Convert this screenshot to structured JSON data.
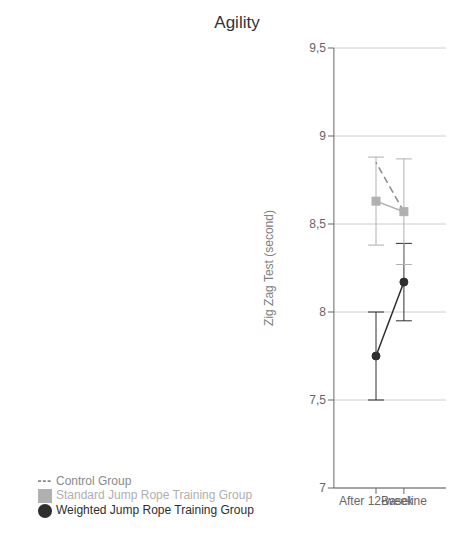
{
  "chart_data": {
    "type": "line",
    "title": "Agility",
    "ylabel": "Zig Zag Test (second)",
    "categories": [
      "Baseline",
      "After 12-week"
    ],
    "ylim": [
      7,
      9.5
    ],
    "yticks": [
      7,
      {
        "value": 7.5,
        "label": "7,5"
      },
      8,
      {
        "value": 8.5,
        "label": "8,5"
      },
      9,
      {
        "value": 9.5,
        "label": "9,5"
      }
    ],
    "grid": true,
    "legend": "bottom",
    "series": [
      {
        "name": "Weighted Jump Rope Training Group",
        "color": "#2e2e2e",
        "values": [
          8.17,
          7.75
        ],
        "errors": [
          0.22,
          0.25
        ],
        "marker": "circle",
        "line_style": "solid"
      },
      {
        "name": "Standard Jump Rope Training Group",
        "color": "#b0b0b0",
        "values": [
          8.57,
          8.63
        ],
        "errors": [
          0.3,
          0.25
        ],
        "marker": "square",
        "line_style": "solid"
      },
      {
        "name": "Control Group",
        "color": "#8a8a8a",
        "values": [
          8.57,
          8.85
        ],
        "marker": "none",
        "line_style": "dashed"
      }
    ]
  }
}
